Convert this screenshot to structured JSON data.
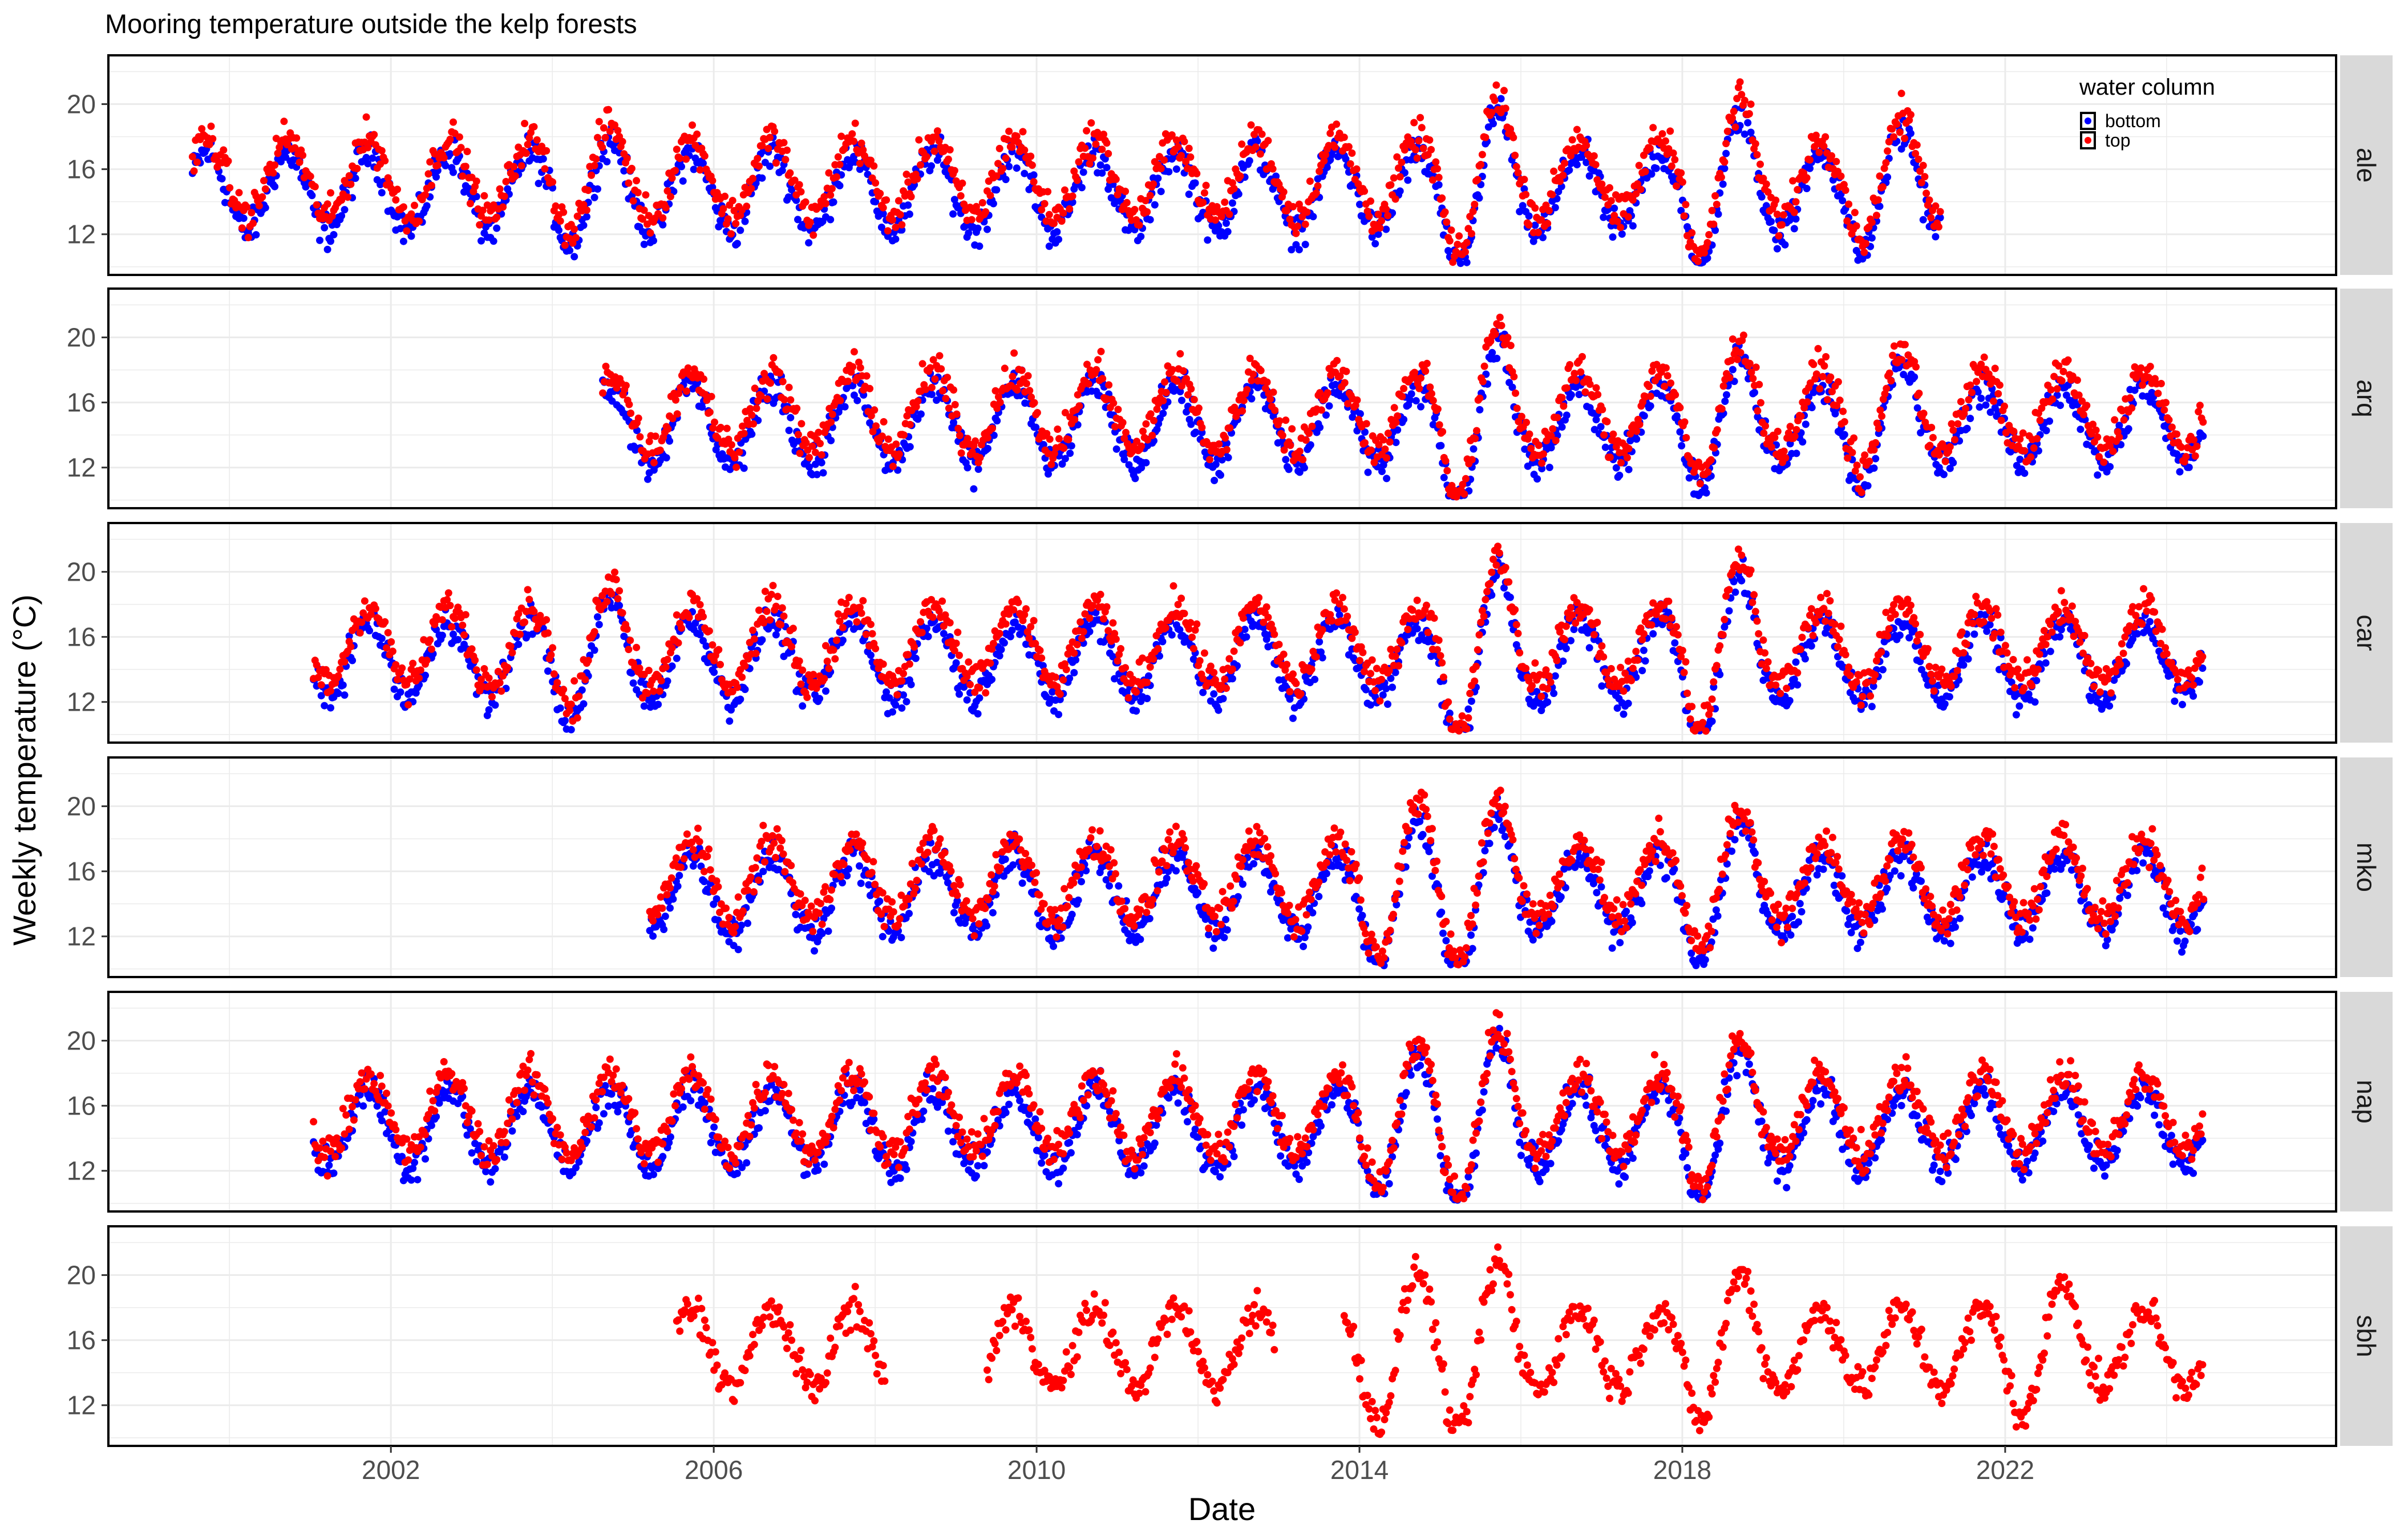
{
  "chart_data": {
    "type": "scatter",
    "title": "Mooring temperature outside the kelp forests",
    "xlabel": "Date",
    "ylabel": "Weekly temperature (°C)",
    "x_ticks": [
      "2002",
      "2006",
      "2010",
      "2014",
      "2018",
      "2022"
    ],
    "y_ticks": [
      "12",
      "16",
      "20"
    ],
    "ylim": [
      9.5,
      23
    ],
    "grid": true,
    "legend": {
      "title": "water column",
      "position": "top-right",
      "entries": [
        {
          "name": "bottom",
          "color": "#0000ff"
        },
        {
          "name": "top",
          "color": "#ff0000"
        }
      ]
    },
    "colors": {
      "bottom": "#0000ff",
      "top": "#ff0000",
      "strip_fill": "#d9d9d9",
      "grid": "#ebebeb"
    },
    "panels": [
      {
        "site": "ale",
        "x_start": "1999-07",
        "x_end": "2021-03",
        "series": [
          {
            "name": "bottom",
            "start": "1999-07",
            "end": "2021-03"
          },
          {
            "name": "top",
            "start": "1999-07",
            "end": "2021-03"
          }
        ],
        "peaks": [
          {
            "x": "2015-08",
            "y": 21.8
          },
          {
            "x": "2018-08",
            "y": 21.5
          },
          {
            "x": "2020-09",
            "y": 20.1
          },
          {
            "x": "2004-09",
            "y": 19.5
          }
        ]
      },
      {
        "site": "arq",
        "x_start": "2004-08",
        "x_end": "2024-06",
        "series": [
          {
            "name": "bottom",
            "start": "2004-08",
            "end": "2024-06"
          },
          {
            "name": "top",
            "start": "2004-08",
            "end": "2024-06"
          }
        ],
        "peaks": [
          {
            "x": "2015-08",
            "y": 22.2
          },
          {
            "x": "2018-08",
            "y": 20.8
          },
          {
            "x": "2020-09",
            "y": 20.3
          }
        ]
      },
      {
        "site": "car",
        "x_start": "2001-01",
        "x_end": "2024-06",
        "series": [
          {
            "name": "bottom",
            "start": "2001-01",
            "end": "2024-06"
          },
          {
            "name": "top",
            "start": "2001-01",
            "end": "2024-06"
          }
        ],
        "peaks": [
          {
            "x": "2015-09",
            "y": 22.5
          },
          {
            "x": "2018-08",
            "y": 22.3
          },
          {
            "x": "2004-09",
            "y": 20.4
          }
        ]
      },
      {
        "site": "mko",
        "x_start": "2005-03",
        "x_end": "2024-06",
        "series": [
          {
            "name": "bottom",
            "start": "2005-03",
            "end": "2024-06"
          },
          {
            "name": "top",
            "start": "2005-03",
            "end": "2024-06"
          }
        ],
        "peaks": [
          {
            "x": "2015-08",
            "y": 21.9
          },
          {
            "x": "2014-09",
            "y": 21.4
          },
          {
            "x": "2018-08",
            "y": 21.0
          }
        ]
      },
      {
        "site": "nap",
        "x_start": "2001-01",
        "x_end": "2024-06",
        "series": [
          {
            "name": "bottom",
            "start": "2001-01",
            "end": "2024-06"
          },
          {
            "name": "top",
            "start": "2001-01",
            "end": "2024-06"
          }
        ],
        "peaks": [
          {
            "x": "2015-08",
            "y": 22.2
          },
          {
            "x": "2018-08",
            "y": 21.5
          },
          {
            "x": "2014-09",
            "y": 21.0
          }
        ]
      },
      {
        "site": "sbh",
        "x_start": "2005-07",
        "x_end": "2024-06",
        "series": [
          {
            "name": "top",
            "start": "2005-07",
            "end": "2024-06"
          }
        ],
        "gaps": [
          [
            "2008-02",
            "2009-05"
          ],
          [
            "2012-12",
            "2013-10"
          ]
        ],
        "peaks": [
          {
            "x": "2015-08",
            "y": 22.2
          },
          {
            "x": "2014-09",
            "y": 21.5
          },
          {
            "x": "2018-08",
            "y": 21.3
          },
          {
            "x": "2022-08",
            "y": 21.0
          }
        ]
      }
    ]
  }
}
